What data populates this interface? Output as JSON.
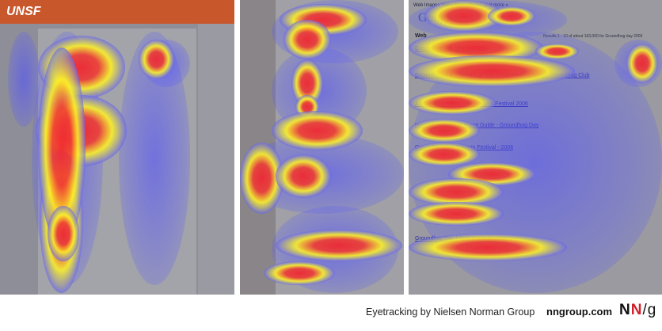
{
  "panels": [
    {
      "name": "corporate-site",
      "logo": "UNSF"
    },
    {
      "name": "ecommerce-product-page"
    },
    {
      "name": "search-results-page",
      "nav": "Web  Images  Video  News  Maps  Local  more »",
      "logo": "Google",
      "section": "Web",
      "results_summary": "Results 1 - 10 of about 163,000 for Groundhog day 2006",
      "results": [
        "Groundhog Job Shadow Day",
        "Groundhog.org - the Official Site of the Punxsutawney Groundhog Club",
        "Alaska Groundhog Day Juggers Festival 2006",
        "Houston Arboretum Event Guide - Groundhog Day",
        "Groundhog Day Juggers Festival - 2006",
        "Groundhog Day | Spring Has Sprung"
      ]
    }
  ],
  "caption": "Eyetracking by Nielsen Norman Group",
  "site": "nngroup.com",
  "brand": {
    "n1": "N",
    "n2": "N",
    "slash_g": "/g",
    "accent": "#d0202a"
  },
  "heatmap_colors": {
    "high": "#f02832",
    "medium": "#faf028",
    "low": "#5a5aff"
  }
}
